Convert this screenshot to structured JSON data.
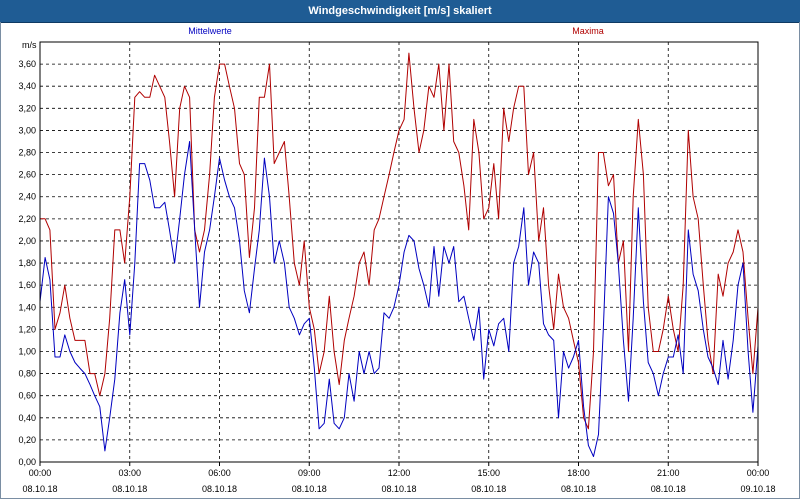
{
  "window": {
    "title": "Windgeschwindigkeit [m/s] skaliert"
  },
  "chart_data": {
    "type": "line",
    "title": "Windgeschwindigkeit [m/s] skaliert",
    "ylabel": "m/s",
    "xlabel": "",
    "ylim": [
      0,
      3.8
    ],
    "y_ticks": [
      "0,00",
      "0,20",
      "0,40",
      "0,60",
      "0,80",
      "1,00",
      "1,20",
      "1,40",
      "1,60",
      "1,80",
      "2,00",
      "2,20",
      "2,40",
      "2,60",
      "2,80",
      "3,00",
      "3,20",
      "3,40",
      "3,60"
    ],
    "y_tick_values": [
      0,
      0.2,
      0.4,
      0.6,
      0.8,
      1.0,
      1.2,
      1.4,
      1.6,
      1.8,
      2.0,
      2.2,
      2.4,
      2.6,
      2.8,
      3.0,
      3.2,
      3.4,
      3.6
    ],
    "x_range_hours": [
      0,
      24
    ],
    "x_ticks": [
      {
        "time": "00:00",
        "date": "08.10.18"
      },
      {
        "time": "03:00",
        "date": "08.10.18"
      },
      {
        "time": "06:00",
        "date": "08.10.18"
      },
      {
        "time": "09:00",
        "date": "08.10.18"
      },
      {
        "time": "12:00",
        "date": "08.10.18"
      },
      {
        "time": "15:00",
        "date": "08.10.18"
      },
      {
        "time": "18:00",
        "date": "08.10.18"
      },
      {
        "time": "21:00",
        "date": "08.10.18"
      },
      {
        "time": "00:00",
        "date": "09.10.18"
      }
    ],
    "grid": true,
    "legend": "top",
    "series": [
      {
        "name": "Mittelwerte",
        "color": "#0000c0",
        "points": [
          [
            0.0,
            1.45
          ],
          [
            0.17,
            1.85
          ],
          [
            0.33,
            1.65
          ],
          [
            0.5,
            0.95
          ],
          [
            0.67,
            0.95
          ],
          [
            0.83,
            1.15
          ],
          [
            1.0,
            1.0
          ],
          [
            1.17,
            0.9
          ],
          [
            1.33,
            0.85
          ],
          [
            1.5,
            0.8
          ],
          [
            1.67,
            0.7
          ],
          [
            1.83,
            0.6
          ],
          [
            2.0,
            0.5
          ],
          [
            2.17,
            0.1
          ],
          [
            2.33,
            0.4
          ],
          [
            2.5,
            0.75
          ],
          [
            2.67,
            1.35
          ],
          [
            2.83,
            1.65
          ],
          [
            3.0,
            1.15
          ],
          [
            3.17,
            1.8
          ],
          [
            3.33,
            2.7
          ],
          [
            3.5,
            2.7
          ],
          [
            3.67,
            2.55
          ],
          [
            3.83,
            2.3
          ],
          [
            4.0,
            2.3
          ],
          [
            4.17,
            2.35
          ],
          [
            4.33,
            2.1
          ],
          [
            4.5,
            1.8
          ],
          [
            4.67,
            2.2
          ],
          [
            4.83,
            2.6
          ],
          [
            5.0,
            2.9
          ],
          [
            5.17,
            2.1
          ],
          [
            5.33,
            1.4
          ],
          [
            5.5,
            1.9
          ],
          [
            5.67,
            2.1
          ],
          [
            5.83,
            2.4
          ],
          [
            6.0,
            2.75
          ],
          [
            6.17,
            2.55
          ],
          [
            6.33,
            2.4
          ],
          [
            6.5,
            2.3
          ],
          [
            6.67,
            2.0
          ],
          [
            6.83,
            1.55
          ],
          [
            7.0,
            1.35
          ],
          [
            7.17,
            1.75
          ],
          [
            7.33,
            2.1
          ],
          [
            7.5,
            2.75
          ],
          [
            7.67,
            2.4
          ],
          [
            7.83,
            1.8
          ],
          [
            8.0,
            2.0
          ],
          [
            8.17,
            1.8
          ],
          [
            8.33,
            1.4
          ],
          [
            8.5,
            1.3
          ],
          [
            8.67,
            1.15
          ],
          [
            8.83,
            1.25
          ],
          [
            9.0,
            1.3
          ],
          [
            9.17,
            0.85
          ],
          [
            9.33,
            0.3
          ],
          [
            9.5,
            0.35
          ],
          [
            9.67,
            0.75
          ],
          [
            9.83,
            0.35
          ],
          [
            10.0,
            0.3
          ],
          [
            10.17,
            0.4
          ],
          [
            10.33,
            0.8
          ],
          [
            10.5,
            0.55
          ],
          [
            10.67,
            1.0
          ],
          [
            10.83,
            0.8
          ],
          [
            11.0,
            1.0
          ],
          [
            11.17,
            0.8
          ],
          [
            11.33,
            0.85
          ],
          [
            11.5,
            1.35
          ],
          [
            11.67,
            1.3
          ],
          [
            11.83,
            1.4
          ],
          [
            12.0,
            1.6
          ],
          [
            12.17,
            1.9
          ],
          [
            12.33,
            2.05
          ],
          [
            12.5,
            2.0
          ],
          [
            12.67,
            1.75
          ],
          [
            12.83,
            1.6
          ],
          [
            13.0,
            1.4
          ],
          [
            13.17,
            1.95
          ],
          [
            13.33,
            1.5
          ],
          [
            13.5,
            1.95
          ],
          [
            13.67,
            1.8
          ],
          [
            13.83,
            1.95
          ],
          [
            14.0,
            1.45
          ],
          [
            14.17,
            1.5
          ],
          [
            14.33,
            1.3
          ],
          [
            14.5,
            1.1
          ],
          [
            14.67,
            1.4
          ],
          [
            14.83,
            0.75
          ],
          [
            15.0,
            1.2
          ],
          [
            15.17,
            1.05
          ],
          [
            15.33,
            1.25
          ],
          [
            15.5,
            1.3
          ],
          [
            15.67,
            1.0
          ],
          [
            15.83,
            1.8
          ],
          [
            16.0,
            1.95
          ],
          [
            16.17,
            2.3
          ],
          [
            16.33,
            1.6
          ],
          [
            16.5,
            1.9
          ],
          [
            16.67,
            1.8
          ],
          [
            16.83,
            1.25
          ],
          [
            17.0,
            1.15
          ],
          [
            17.17,
            1.1
          ],
          [
            17.33,
            0.4
          ],
          [
            17.5,
            1.0
          ],
          [
            17.67,
            0.85
          ],
          [
            17.83,
            0.95
          ],
          [
            18.0,
            1.1
          ],
          [
            18.17,
            0.5
          ],
          [
            18.33,
            0.15
          ],
          [
            18.5,
            0.05
          ],
          [
            18.67,
            0.25
          ],
          [
            18.83,
            1.2
          ],
          [
            19.0,
            2.4
          ],
          [
            19.17,
            2.25
          ],
          [
            19.33,
            1.8
          ],
          [
            19.5,
            1.1
          ],
          [
            19.67,
            0.55
          ],
          [
            19.83,
            1.3
          ],
          [
            20.0,
            2.3
          ],
          [
            20.17,
            1.45
          ],
          [
            20.33,
            0.9
          ],
          [
            20.5,
            0.8
          ],
          [
            20.67,
            0.6
          ],
          [
            20.83,
            0.8
          ],
          [
            21.0,
            0.95
          ],
          [
            21.17,
            0.95
          ],
          [
            21.33,
            1.15
          ],
          [
            21.5,
            0.8
          ],
          [
            21.67,
            2.1
          ],
          [
            21.83,
            1.7
          ],
          [
            22.0,
            1.55
          ],
          [
            22.17,
            1.2
          ],
          [
            22.33,
            0.95
          ],
          [
            22.5,
            0.85
          ],
          [
            22.67,
            0.7
          ],
          [
            22.83,
            1.1
          ],
          [
            23.0,
            0.75
          ],
          [
            23.17,
            1.1
          ],
          [
            23.33,
            1.6
          ],
          [
            23.5,
            1.8
          ],
          [
            23.67,
            1.0
          ],
          [
            23.83,
            0.45
          ],
          [
            24.0,
            1.05
          ]
        ]
      },
      {
        "name": "Maxima",
        "color": "#b00000",
        "points": [
          [
            0.0,
            2.2
          ],
          [
            0.17,
            2.2
          ],
          [
            0.33,
            2.1
          ],
          [
            0.5,
            1.2
          ],
          [
            0.67,
            1.35
          ],
          [
            0.83,
            1.6
          ],
          [
            1.0,
            1.3
          ],
          [
            1.17,
            1.1
          ],
          [
            1.33,
            1.1
          ],
          [
            1.5,
            1.1
          ],
          [
            1.67,
            0.8
          ],
          [
            1.83,
            0.8
          ],
          [
            2.0,
            0.6
          ],
          [
            2.17,
            0.8
          ],
          [
            2.33,
            1.3
          ],
          [
            2.5,
            2.1
          ],
          [
            2.67,
            2.1
          ],
          [
            2.83,
            1.8
          ],
          [
            3.0,
            2.4
          ],
          [
            3.17,
            3.3
          ],
          [
            3.33,
            3.35
          ],
          [
            3.5,
            3.3
          ],
          [
            3.67,
            3.3
          ],
          [
            3.83,
            3.5
          ],
          [
            4.0,
            3.4
          ],
          [
            4.17,
            3.3
          ],
          [
            4.33,
            2.9
          ],
          [
            4.5,
            2.4
          ],
          [
            4.67,
            3.2
          ],
          [
            4.83,
            3.4
          ],
          [
            5.0,
            3.3
          ],
          [
            5.17,
            2.1
          ],
          [
            5.33,
            1.9
          ],
          [
            5.5,
            2.1
          ],
          [
            5.67,
            2.6
          ],
          [
            5.83,
            3.3
          ],
          [
            6.0,
            3.6
          ],
          [
            6.17,
            3.6
          ],
          [
            6.33,
            3.4
          ],
          [
            6.5,
            3.2
          ],
          [
            6.67,
            2.7
          ],
          [
            6.83,
            2.6
          ],
          [
            7.0,
            1.85
          ],
          [
            7.17,
            2.3
          ],
          [
            7.33,
            3.3
          ],
          [
            7.5,
            3.3
          ],
          [
            7.67,
            3.6
          ],
          [
            7.83,
            2.7
          ],
          [
            8.0,
            2.8
          ],
          [
            8.17,
            2.9
          ],
          [
            8.33,
            2.4
          ],
          [
            8.5,
            1.8
          ],
          [
            8.67,
            1.6
          ],
          [
            8.83,
            2.0
          ],
          [
            9.0,
            1.4
          ],
          [
            9.17,
            1.2
          ],
          [
            9.33,
            0.8
          ],
          [
            9.5,
            1.0
          ],
          [
            9.67,
            1.5
          ],
          [
            9.83,
            1.0
          ],
          [
            10.0,
            0.7
          ],
          [
            10.17,
            1.1
          ],
          [
            10.33,
            1.3
          ],
          [
            10.5,
            1.5
          ],
          [
            10.67,
            1.8
          ],
          [
            10.83,
            1.9
          ],
          [
            11.0,
            1.6
          ],
          [
            11.17,
            2.1
          ],
          [
            11.33,
            2.2
          ],
          [
            11.5,
            2.4
          ],
          [
            11.67,
            2.6
          ],
          [
            11.83,
            2.8
          ],
          [
            12.0,
            3.0
          ],
          [
            12.17,
            3.1
          ],
          [
            12.33,
            3.7
          ],
          [
            12.5,
            3.2
          ],
          [
            12.67,
            2.8
          ],
          [
            12.83,
            3.0
          ],
          [
            13.0,
            3.4
          ],
          [
            13.17,
            3.3
          ],
          [
            13.33,
            3.6
          ],
          [
            13.5,
            3.0
          ],
          [
            13.67,
            3.6
          ],
          [
            13.83,
            2.9
          ],
          [
            14.0,
            2.8
          ],
          [
            14.17,
            2.5
          ],
          [
            14.33,
            2.1
          ],
          [
            14.5,
            3.1
          ],
          [
            14.67,
            2.8
          ],
          [
            14.83,
            2.2
          ],
          [
            15.0,
            2.3
          ],
          [
            15.17,
            2.7
          ],
          [
            15.33,
            2.2
          ],
          [
            15.5,
            3.2
          ],
          [
            15.67,
            2.9
          ],
          [
            15.83,
            3.2
          ],
          [
            16.0,
            3.4
          ],
          [
            16.17,
            3.4
          ],
          [
            16.33,
            2.6
          ],
          [
            16.5,
            2.8
          ],
          [
            16.67,
            2.0
          ],
          [
            16.83,
            2.3
          ],
          [
            17.0,
            1.6
          ],
          [
            17.17,
            1.2
          ],
          [
            17.33,
            1.7
          ],
          [
            17.5,
            1.4
          ],
          [
            17.67,
            1.3
          ],
          [
            17.83,
            1.1
          ],
          [
            18.0,
            0.9
          ],
          [
            18.17,
            0.4
          ],
          [
            18.33,
            0.3
          ],
          [
            18.5,
            1.0
          ],
          [
            18.67,
            2.8
          ],
          [
            18.83,
            2.8
          ],
          [
            19.0,
            2.5
          ],
          [
            19.17,
            2.6
          ],
          [
            19.33,
            1.8
          ],
          [
            19.5,
            2.0
          ],
          [
            19.67,
            1.0
          ],
          [
            19.83,
            2.4
          ],
          [
            20.0,
            3.1
          ],
          [
            20.17,
            2.6
          ],
          [
            20.33,
            1.4
          ],
          [
            20.5,
            1.0
          ],
          [
            20.67,
            1.0
          ],
          [
            20.83,
            1.2
          ],
          [
            21.0,
            1.5
          ],
          [
            21.17,
            1.2
          ],
          [
            21.33,
            1.0
          ],
          [
            21.5,
            1.6
          ],
          [
            21.67,
            3.0
          ],
          [
            21.83,
            2.4
          ],
          [
            22.0,
            2.2
          ],
          [
            22.17,
            1.6
          ],
          [
            22.33,
            1.1
          ],
          [
            22.5,
            0.8
          ],
          [
            22.67,
            1.7
          ],
          [
            22.83,
            1.5
          ],
          [
            23.0,
            1.8
          ],
          [
            23.17,
            1.9
          ],
          [
            23.33,
            2.1
          ],
          [
            23.5,
            1.9
          ],
          [
            23.67,
            1.3
          ],
          [
            23.83,
            0.8
          ],
          [
            24.0,
            1.4
          ]
        ]
      }
    ]
  }
}
